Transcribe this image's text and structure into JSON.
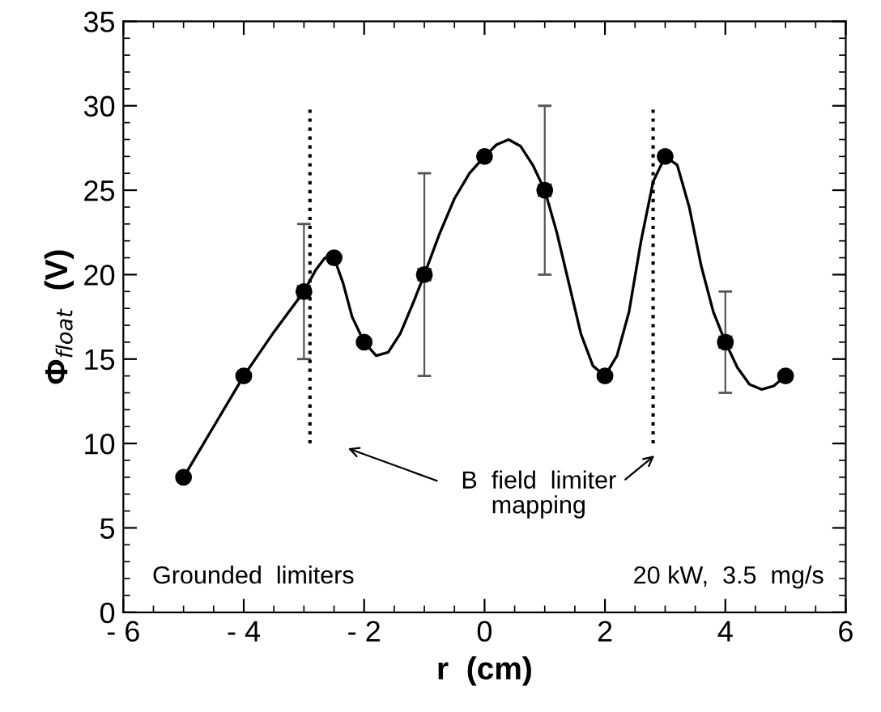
{
  "chart_data": {
    "type": "scatter",
    "xlabel": "r  (cm)",
    "ylabel": "Φ$_{float}$  (V)",
    "xlim": [
      -6,
      6
    ],
    "ylim": [
      0,
      35
    ],
    "xticks": [
      {
        "value": -6,
        "label": "- 6"
      },
      {
        "value": -4,
        "label": "- 4"
      },
      {
        "value": -2,
        "label": "- 2"
      },
      0,
      2,
      4,
      6
    ],
    "yticks": [
      0,
      5,
      10,
      15,
      20,
      25,
      30,
      35
    ],
    "grid": false,
    "legend": false,
    "marker": "circle",
    "series": [
      {
        "color": "#000000",
        "x": [
          -5,
          -4,
          -3,
          -2.5,
          -2,
          -1,
          0,
          1,
          2,
          3,
          4,
          5
        ],
        "values": [
          8,
          14,
          19,
          21,
          16,
          20,
          27,
          25,
          14,
          27,
          16,
          14
        ],
        "errors": [
          null,
          null,
          4,
          null,
          null,
          6,
          null,
          5,
          null,
          null,
          3,
          null
        ],
        "xerrors": [
          null,
          null,
          0.1,
          null,
          null,
          0.1,
          null,
          0.1,
          null,
          null,
          0.1,
          null
        ]
      },
      {
        "type": "line",
        "color": "#000000",
        "line_style": "solid",
        "marker": "none",
        "x": [
          -5,
          -4.5,
          -4,
          -3.5,
          -3,
          -2.8,
          -2.65,
          -2.5,
          -2.35,
          -2.2,
          -2,
          -1.8,
          -1.6,
          -1.4,
          -1.2,
          -1,
          -0.75,
          -0.5,
          -0.25,
          0,
          0.2,
          0.4,
          0.6,
          0.8,
          1,
          1.2,
          1.4,
          1.6,
          1.8,
          2,
          2.2,
          2.4,
          2.6,
          2.8,
          3,
          3.2,
          3.4,
          3.6,
          3.8,
          4,
          4.2,
          4.4,
          4.6,
          4.8,
          5
        ],
        "values": [
          8,
          11,
          14,
          16.6,
          19,
          20.3,
          21,
          21,
          19.5,
          17.5,
          16,
          15.2,
          15.4,
          16.5,
          18.2,
          20,
          22.4,
          24.5,
          26,
          27,
          27.7,
          28,
          27.6,
          26.5,
          25,
          22.5,
          19.5,
          16.5,
          14.6,
          14,
          15.2,
          17.8,
          22,
          25.5,
          27,
          26.5,
          24,
          20.5,
          17.8,
          16,
          14.5,
          13.5,
          13.2,
          13.4,
          14
        ]
      }
    ],
    "ref_lines": [
      {
        "axis": "x",
        "value": -2.9,
        "line_style": "dotted",
        "color": "#000000"
      },
      {
        "axis": "x",
        "value": 2.8,
        "line_style": "dotted",
        "color": "#000000"
      }
    ],
    "annotations": [
      "B  field  limiter\nmapping",
      "Grounded  limiters",
      "20 kW,  3.5  mg/s"
    ]
  }
}
